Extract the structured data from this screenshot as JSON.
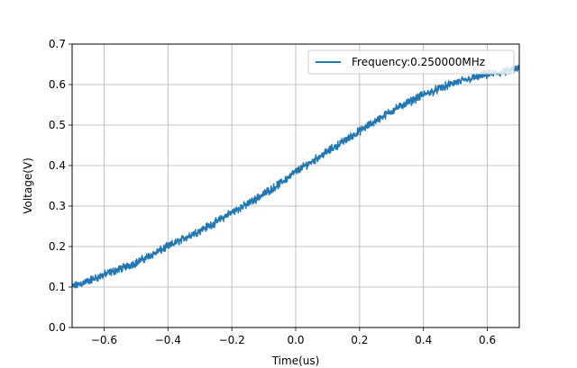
{
  "chart_data": {
    "type": "line",
    "title": "",
    "xlabel": "Time(us)",
    "ylabel": "Voltage(V)",
    "xlim": [
      -0.7,
      0.7
    ],
    "ylim": [
      0.0,
      0.7
    ],
    "xticks": [
      -0.6,
      -0.4,
      -0.2,
      0.0,
      0.2,
      0.4,
      0.6
    ],
    "xtick_labels": [
      "−0.6",
      "−0.4",
      "−0.2",
      "0.0",
      "0.2",
      "0.4",
      "0.6"
    ],
    "yticks": [
      0.0,
      0.1,
      0.2,
      0.3,
      0.4,
      0.5,
      0.6,
      0.7
    ],
    "ytick_labels": [
      "0.0",
      "0.1",
      "0.2",
      "0.3",
      "0.4",
      "0.5",
      "0.6",
      "0.7"
    ],
    "grid": true,
    "legend_position": "top-right",
    "series": [
      {
        "name": "Frequency:0.250000MHz",
        "color": "#1f77b4",
        "x": [
          -0.7,
          -0.65,
          -0.6,
          -0.55,
          -0.5,
          -0.45,
          -0.4,
          -0.35,
          -0.3,
          -0.25,
          -0.2,
          -0.15,
          -0.1,
          -0.05,
          0.0,
          0.05,
          0.1,
          0.15,
          0.2,
          0.25,
          0.3,
          0.35,
          0.4,
          0.45,
          0.5,
          0.55,
          0.6,
          0.65,
          0.7
        ],
        "y": [
          0.1,
          0.115,
          0.13,
          0.145,
          0.16,
          0.18,
          0.2,
          0.22,
          0.24,
          0.26,
          0.285,
          0.305,
          0.33,
          0.355,
          0.385,
          0.41,
          0.435,
          0.46,
          0.485,
          0.51,
          0.535,
          0.555,
          0.575,
          0.59,
          0.605,
          0.615,
          0.625,
          0.63,
          0.64
        ],
        "noise_amplitude": 0.012
      }
    ]
  }
}
